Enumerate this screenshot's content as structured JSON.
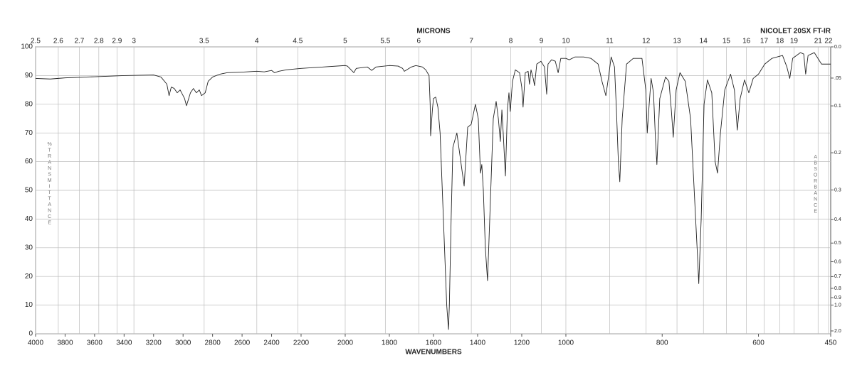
{
  "chart_data": {
    "type": "line",
    "top_axis_label": "MICRONS",
    "x_axis_label": "WAVENUMBERS",
    "annotation": "NICOLET 20SX FT-IR",
    "y_axis_label": "%TRANSMITTANCE",
    "y2_axis_label": "ABSORBANCE",
    "xlim": [
      4000,
      450
    ],
    "xscale_breaks": [
      2200,
      1000
    ],
    "xticks": [
      4000,
      3800,
      3600,
      3400,
      3200,
      3000,
      2800,
      2600,
      2400,
      2200,
      2000,
      1800,
      1600,
      1400,
      1200,
      1000,
      800,
      600,
      450
    ],
    "top_ticks": [
      2.5,
      2.6,
      2.7,
      2.8,
      2.9,
      3,
      3.5,
      4,
      4.5,
      5,
      5.5,
      6,
      7,
      8,
      9,
      10,
      11,
      12,
      13,
      14,
      15,
      16,
      17,
      18,
      19,
      21,
      22
    ],
    "ylim": [
      0,
      100
    ],
    "yticks": [
      0,
      10,
      20,
      30,
      40,
      50,
      60,
      70,
      80,
      90,
      100
    ],
    "y2_scale": "absorbance",
    "y2ticks": [
      {
        "value": 0,
        "label": "0.0"
      },
      {
        "value": 0.05,
        "label": ".05"
      },
      0.1,
      0.2,
      0.3,
      0.4,
      0.5,
      0.6,
      0.7,
      0.8,
      0.9,
      {
        "value": 1,
        "label": "1.0"
      },
      {
        "value": 2,
        "label": "2.0"
      }
    ],
    "grid": true,
    "color": "#222222",
    "x": [
      4000,
      3900,
      3800,
      3600,
      3400,
      3200,
      3150,
      3110,
      3095,
      3080,
      3060,
      3040,
      3020,
      2990,
      2977,
      2950,
      2930,
      2910,
      2890,
      2875,
      2850,
      2830,
      2800,
      2750,
      2700,
      2600,
      2500,
      2450,
      2400,
      2380,
      2350,
      2300,
      2200,
      2100,
      2000,
      1990,
      1961,
      1950,
      1900,
      1880,
      1860,
      1800,
      1760,
      1740,
      1732,
      1700,
      1680,
      1650,
      1635,
      1620,
      1615,
      1613,
      1605,
      1600,
      1590,
      1580,
      1570,
      1555,
      1540,
      1532,
      1528,
      1520,
      1512,
      1494,
      1461,
      1445,
      1429,
      1410,
      1397,
      1387,
      1381,
      1374,
      1365,
      1355,
      1345,
      1329,
      1316,
      1306,
      1297,
      1290,
      1284,
      1274,
      1265,
      1258,
      1252,
      1242,
      1229,
      1210,
      1200,
      1194,
      1184,
      1171,
      1165,
      1158,
      1148,
      1142,
      1132,
      1113,
      1097,
      1087,
      1081,
      1065,
      1048,
      1035,
      1023,
      1000,
      993,
      981,
      963,
      948,
      933,
      925,
      917,
      911,
      906,
      899,
      895,
      891,
      888,
      883,
      874,
      860,
      842,
      834,
      831,
      827,
      823,
      818,
      814,
      811,
      805,
      793,
      786,
      781,
      777,
      771,
      763,
      752,
      741,
      732,
      726,
      724,
      719,
      713,
      706,
      697,
      690,
      685,
      679,
      670,
      658,
      650,
      644,
      638,
      629,
      620,
      611,
      600,
      587,
      572,
      550,
      541,
      535,
      529,
      513,
      506,
      502,
      497,
      484,
      469,
      450
    ],
    "values": [
      89,
      88.8,
      89.2,
      89.6,
      90,
      90.2,
      89.5,
      87,
      83,
      86,
      85.5,
      84,
      85,
      82,
      79.5,
      84,
      85.5,
      84,
      85,
      83,
      84,
      88,
      89.5,
      90.5,
      91,
      91.2,
      91.5,
      91.3,
      91.8,
      91,
      91.5,
      92,
      92.5,
      93,
      93.5,
      93.3,
      91,
      92.5,
      93,
      91.8,
      93,
      93.5,
      93.3,
      92.5,
      91.5,
      93,
      93.5,
      93,
      92,
      90,
      80,
      69,
      78,
      82,
      82.5,
      79,
      70,
      40,
      10,
      1.5,
      10,
      40,
      65,
      70,
      51.5,
      72,
      73,
      80,
      75,
      56,
      59,
      50,
      30,
      18.5,
      40,
      75,
      81,
      75,
      67,
      78,
      70,
      55,
      78,
      84,
      77.5,
      88,
      92,
      91,
      86,
      79,
      91,
      91.5,
      87,
      92,
      89,
      86.5,
      94,
      95,
      93,
      83.5,
      94,
      95.5,
      95,
      91,
      96,
      96,
      95.5,
      96.5,
      96.5,
      96,
      94,
      88,
      83,
      90,
      96.5,
      93,
      78,
      60,
      53,
      75,
      94,
      96,
      96,
      85,
      70,
      80,
      89,
      84,
      68,
      59,
      82,
      89.5,
      88,
      78,
      68.5,
      85,
      91,
      88,
      75,
      45,
      25,
      17.5,
      40,
      80,
      88.5,
      84,
      60,
      56,
      70,
      85,
      90.5,
      85,
      71,
      82,
      88.5,
      84,
      89,
      90.5,
      94,
      96,
      97,
      93,
      89,
      96,
      98,
      97.5,
      90.5,
      97,
      98,
      94,
      94
    ]
  }
}
